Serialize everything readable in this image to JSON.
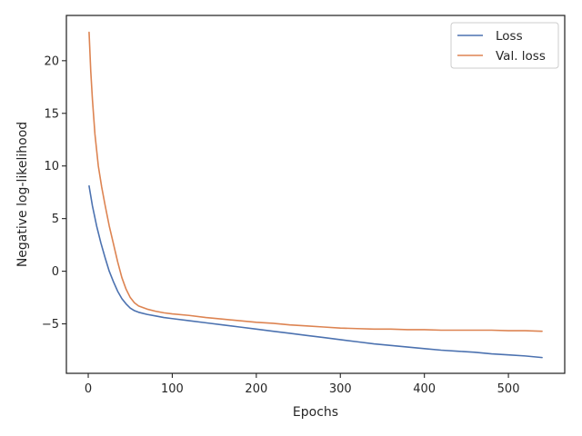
{
  "chart_data": {
    "type": "line",
    "title": "",
    "xlabel": "Epochs",
    "ylabel": "Negative log-likelihood",
    "xlim": [
      -26,
      567
    ],
    "ylim": [
      -9.7,
      24.3
    ],
    "xticks": [
      0,
      100,
      200,
      300,
      400,
      500
    ],
    "yticks": [
      -5,
      0,
      5,
      10,
      15,
      20
    ],
    "ytick_labels": [
      "−5",
      "0",
      "5",
      "10",
      "15",
      "20"
    ],
    "grid": false,
    "legend_position": "top-right",
    "series": [
      {
        "name": "Loss",
        "color": "#4c72b0",
        "x": [
          1,
          5,
          10,
          15,
          20,
          25,
          30,
          35,
          40,
          45,
          50,
          55,
          60,
          70,
          80,
          90,
          100,
          120,
          140,
          160,
          180,
          200,
          220,
          240,
          260,
          280,
          300,
          320,
          340,
          360,
          380,
          400,
          420,
          440,
          460,
          480,
          500,
          520,
          540
        ],
        "y": [
          8.1,
          6.2,
          4.3,
          2.7,
          1.3,
          0.0,
          -1.0,
          -1.9,
          -2.6,
          -3.1,
          -3.5,
          -3.75,
          -3.9,
          -4.1,
          -4.25,
          -4.4,
          -4.5,
          -4.7,
          -4.9,
          -5.1,
          -5.3,
          -5.5,
          -5.7,
          -5.9,
          -6.1,
          -6.3,
          -6.5,
          -6.7,
          -6.9,
          -7.05,
          -7.2,
          -7.35,
          -7.5,
          -7.6,
          -7.7,
          -7.85,
          -7.95,
          -8.05,
          -8.2
        ]
      },
      {
        "name": "Val. loss",
        "color": "#dd8452",
        "x": [
          1,
          3,
          5,
          8,
          12,
          16,
          20,
          25,
          30,
          35,
          40,
          45,
          50,
          55,
          60,
          70,
          80,
          90,
          100,
          120,
          140,
          160,
          180,
          200,
          220,
          240,
          260,
          280,
          300,
          320,
          340,
          360,
          380,
          400,
          420,
          440,
          460,
          480,
          500,
          520,
          540
        ],
        "y": [
          22.7,
          19.0,
          16.3,
          13.0,
          10.0,
          8.0,
          6.3,
          4.3,
          2.6,
          0.9,
          -0.6,
          -1.7,
          -2.5,
          -3.0,
          -3.3,
          -3.6,
          -3.8,
          -3.95,
          -4.05,
          -4.2,
          -4.4,
          -4.55,
          -4.7,
          -4.85,
          -4.95,
          -5.1,
          -5.2,
          -5.3,
          -5.4,
          -5.45,
          -5.5,
          -5.5,
          -5.55,
          -5.55,
          -5.6,
          -5.6,
          -5.6,
          -5.6,
          -5.65,
          -5.65,
          -5.7
        ]
      }
    ]
  }
}
